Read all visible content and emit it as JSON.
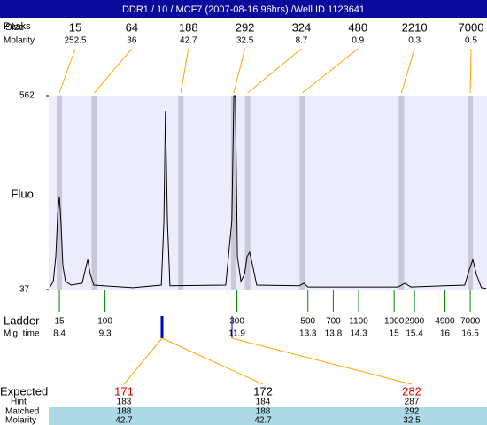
{
  "chart_data": {
    "type": "line",
    "title": "DDR1 / 10 / MCF7 (2007-08-16 96hrs) /Well ID 1123641",
    "y_label": "Fluo.",
    "color": "#000000",
    "x": [
      8.21,
      8.28,
      8.33,
      8.37,
      8.4,
      8.43,
      8.47,
      8.52,
      8.63,
      8.85,
      8.91,
      8.96,
      9.01,
      9.08,
      9.85,
      10.41,
      10.46,
      10.49,
      10.53,
      10.58,
      11.68,
      11.8,
      11.84,
      11.87,
      11.91,
      11.98,
      12.05,
      12.1,
      12.15,
      12.21,
      12.29,
      13.13,
      13.22,
      13.3,
      15.08,
      15.21,
      15.33,
      16.39,
      16.48,
      16.55,
      16.62,
      16.72,
      16.81
    ],
    "values": [
      42,
      59,
      126,
      246,
      289,
      222,
      102,
      59,
      49,
      54,
      90,
      118,
      78,
      49,
      42,
      49,
      222,
      521,
      222,
      47,
      49,
      222,
      562,
      562,
      126,
      59,
      78,
      126,
      138,
      102,
      49,
      47,
      54,
      44,
      44,
      54,
      44,
      49,
      90,
      118,
      78,
      42,
      40
    ],
    "xlim": [
      8.19,
      16.83
    ],
    "ylim": [
      37,
      562
    ],
    "yticks": [
      37,
      562
    ],
    "peaks": {
      "header_labels": [
        "Peaks",
        "Size"
      ],
      "molarity_label": "Molarity",
      "sizes": [
        15,
        64,
        188,
        292,
        324,
        480,
        2210,
        7000
      ],
      "molarities": [
        252.5,
        36,
        42.7,
        32.5,
        8.7,
        0.9,
        0.3,
        0.5
      ],
      "color": "#ffa500",
      "band_color": "#c8c8d8"
    },
    "ladder": {
      "label": "Ladder",
      "time_label": "Mig. time",
      "sizes": [
        15,
        100,
        300,
        500,
        700,
        1100,
        1900,
        2900,
        4900,
        7000
      ],
      "times": [
        8.4,
        9.3,
        11.9,
        13.3,
        13.8,
        14.3,
        15,
        15.4,
        16,
        16.5
      ],
      "color": "#008000"
    },
    "expected": {
      "row_labels": [
        "Expected",
        "Hint",
        "Matched",
        "Molarity"
      ],
      "columns": [
        {
          "expected": 171,
          "hint": 183,
          "matched": 188,
          "molarity": 42.7,
          "color": "#e00000"
        },
        {
          "expected": 172,
          "hint": 184,
          "matched": 188,
          "molarity": 42.7,
          "color": "#000000"
        },
        {
          "expected": 282,
          "hint": 287,
          "matched": 292,
          "molarity": 32.5,
          "color": "#e00000"
        }
      ]
    }
  }
}
